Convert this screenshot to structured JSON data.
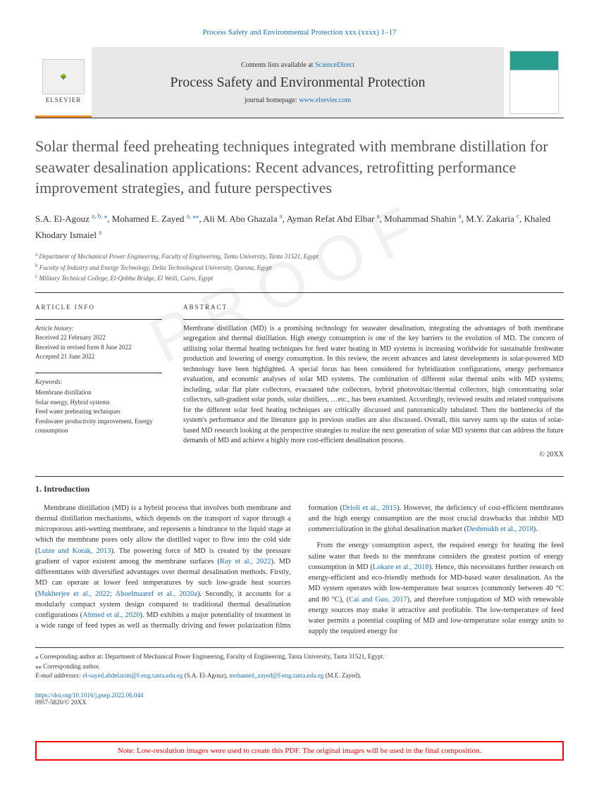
{
  "header": {
    "citation": "Process Safety and Environmental Protection xxx (xxxx) 1–17"
  },
  "banner": {
    "publisher": "ELSEVIER",
    "contents_prefix": "Contents lists available at ",
    "contents_link": "ScienceDirect",
    "journal": "Process Safety and Environmental Protection",
    "homepage_prefix": "journal homepage: ",
    "homepage_link": "www.elsevier.com"
  },
  "title": "Solar thermal feed preheating techniques integrated with membrane distillation for seawater desalination applications: Recent advances, retrofitting performance improvement strategies, and future perspectives",
  "authors": [
    {
      "name": "S.A. El-Agouz",
      "aff": "a, b, ⁎"
    },
    {
      "name": "Mohamed E. Zayed",
      "aff": "a, ⁎⁎"
    },
    {
      "name": "Ali M. Abo Ghazala",
      "aff": "a"
    },
    {
      "name": "Ayman Refat Abd Elbar",
      "aff": "a"
    },
    {
      "name": "Mohammad Shahin",
      "aff": "a"
    },
    {
      "name": "M.Y. Zakaria",
      "aff": "c"
    },
    {
      "name": "Khaled Khodary Ismaiel",
      "aff": "a"
    }
  ],
  "affiliations": [
    {
      "lbl": "a",
      "text": "Department of Mechanical Power Engineering, Faculty of Engineering, Tanta University, Tanta 31521, Egypt"
    },
    {
      "lbl": "b",
      "text": "Faculty of Industry and Energy Technology, Delta Technological University, Quesna, Egypt"
    },
    {
      "lbl": "c",
      "text": "Military Technical College, El-Qobba Bridge, El Weili, Cairo, Egypt"
    }
  ],
  "info": {
    "heading": "ARTICLE INFO",
    "history_label": "Article history:",
    "received": "Received 22 February 2022",
    "revised": "Received in revised form 8 June 2022",
    "accepted": "Accepted 21 June 2022",
    "keywords_label": "Keywords:",
    "keywords": "Membrane distillation\nSolar energy, Hybrid systems\nFeed water preheating techniques\nFreshwater productivity improvement, Energy consumption"
  },
  "abstract": {
    "heading": "ABSTRACT",
    "text": "Membrane distillation (MD) is a promising technology for seawater desalination, integrating the advantages of both membrane segregation and thermal distillation. High energy consumption is one of the key barriers to the evolution of MD. The concern of utilizing solar thermal heating techniques for feed water heating in MD systems is increasing worldwide for sustainable freshwater production and lowering of energy consumption. In this review, the recent advances and latest developments in solar-powered MD technology have been highlighted. A special focus has been considered for hybridization configurations, energy performance evaluation, and economic analyses of solar MD systems. The combination of different solar thermal units with MD systems; including, solar flat plate collectors, evacuated tube collectors, hybrid photovoltaic/thermal collectors, high concentrating solar collectors, salt-gradient solar ponds, solar distillers, …etc., has been examined. Accordingly, reviewed results and related comparisons for the different solar feed heating techniques are critically discussed and panoramically tabulated. Then the bottlenecks of the system's performance and the literature gap in previous studies are also discussed. Overall, this survey sums up the status of solar-based MD research looking at the perspective strategies to realize the next generation of solar MD systems that can address the future demands of MD and achieve a highly more cost-efficient desalination process.",
    "copyright": "© 20XX"
  },
  "intro": {
    "heading": "1. Introduction",
    "p1_a": "Membrane distillation (MD) is a hybrid process that involves both membrane and thermal distillation mechanisms, which depends on the transport of vapor through a microporous anti-wetting membrane, and represents a hindrance to the liquid stage at which the membrane pores only allow the distilled vapor to flow into the cold side (",
    "p1_link1": "Lutze and Korak, 2013",
    "p1_b": "). The powering force of MD is created by the pressure gradient of vapor existent among the membrane surfaces (",
    "p1_link2": "Ray et al., 2022",
    "p1_c": "). MD differentiates with diversified advantages over thermal desalination methods. Firstly, MD can operate at lower feed temperatures by such low-grade heat sources (",
    "p1_link3": "Mukherjee et al., 2022; Aboelmaaref et al., 2020a",
    "p1_d": "). Secondly, it accounts for a modularly compact system design compared to traditional thermal desalination configurations (",
    "p1_link4": "Ahmed et al., 2020",
    "p1_e": "). MD exhibits a major potentiality of treatment in a wide range of feed types as well as thermally driving and fewer polarization films formation (",
    "p1_link5": "Drioli et al., 2015",
    "p1_f": "). However, the deficiency of cost-efficient membranes and the high energy consumption are the most crucial drawbacks that inhibit MD commercialization in the global desalination market (",
    "p1_link6": "Deshmukh et al., 2018",
    "p1_g": ").",
    "p2_a": "From the energy consumption aspect, the required energy for heating the feed saline water that feeds to the membrane considers the greatest portion of energy consumption in MD (",
    "p2_link1": "Lokare et al., 2018",
    "p2_b": "). Hence, this necessitates further research on energy-efficient and eco-friendly methods for MD-based water desalination. As the MD system operates with low-temperature heat sources (commonly between 40 °C and 80 °C), (",
    "p2_link2": "Cai and Guo, 2017",
    "p2_c": "), and therefore conjugation of MD with renewable energy sources may make it attractive and profitable. The low-temperature of feed water permits a potential coupling of MD and low-temperature solar energy units to supply the required energy for"
  },
  "footnotes": {
    "c1": "⁎ Corresponding author at: Department of Mechanical Power Engineering, Faculty of Engineering, Tanta University, Tanta 31521, Egypt.",
    "c2": "⁎⁎ Corresponding author.",
    "email_label": "E-mail addresses: ",
    "email1": "el-sayed.abdelazim@f-eng.tanta.edu.eg",
    "email1_who": " (S.A. El-Agouz), ",
    "email2": "mohamed_zayed@f-eng.tanta.edu.eg",
    "email2_who": " (M.E. Zayed)."
  },
  "doi": {
    "link": "https://doi.org/10.1016/j.psep.2022.06.044",
    "issn": "0957-5820/© 20XX"
  },
  "note": "Note: Low-resolution images were used to create this PDF. The original images will be used in the final composition.",
  "watermark": "UNCORRECTED PROOF"
}
